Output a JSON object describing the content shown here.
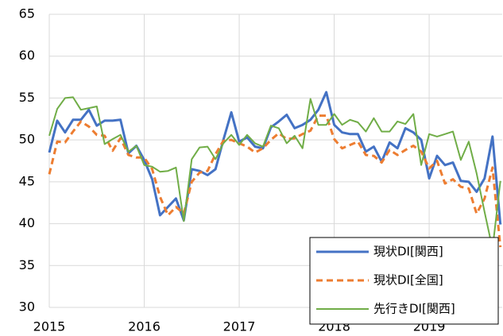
{
  "chart_data": {
    "type": "line",
    "categories": [
      "2015",
      null,
      null,
      null,
      null,
      null,
      null,
      null,
      null,
      null,
      null,
      null,
      "2016",
      null,
      null,
      null,
      null,
      null,
      null,
      null,
      null,
      null,
      null,
      null,
      "2017",
      null,
      null,
      null,
      null,
      null,
      null,
      null,
      null,
      null,
      null,
      null,
      "2018",
      null,
      null,
      null,
      null,
      null,
      null,
      null,
      null,
      null,
      null,
      null,
      "2019",
      null,
      null,
      null,
      null,
      null,
      null,
      null,
      null,
      null
    ],
    "series": [
      {
        "name": "現状DI[関西]",
        "color": "#4472c4",
        "dash": "solid",
        "values": [
          48.5,
          52.3,
          50.9,
          52.4,
          52.4,
          53.6,
          51.7,
          52.3,
          52.3,
          52.4,
          48.4,
          49.3,
          47.6,
          45.3,
          41.0,
          42.0,
          43.0,
          40.4,
          46.5,
          46.3,
          45.8,
          46.5,
          50.0,
          53.3,
          49.8,
          50.3,
          49.2,
          49.0,
          51.5,
          52.2,
          53.0,
          51.4,
          51.8,
          52.4,
          53.6,
          55.7,
          51.8,
          50.9,
          50.7,
          50.7,
          48.6,
          49.2,
          47.4,
          49.7,
          49.0,
          51.4,
          50.9,
          50.0,
          45.4,
          48.1,
          47.0,
          47.3,
          45.1,
          45.0,
          43.8,
          45.4,
          50.4,
          39.9
        ]
      },
      {
        "name": "現状DI[全国]",
        "color": "#ed7d31",
        "dash": "dashed",
        "values": [
          45.9,
          49.8,
          49.7,
          51.0,
          52.2,
          51.6,
          50.6,
          50.5,
          48.7,
          50.2,
          48.2,
          47.9,
          47.9,
          46.5,
          43.2,
          41.0,
          42.0,
          41.2,
          45.0,
          46.1,
          46.3,
          48.3,
          49.9,
          50.0,
          49.6,
          49.2,
          48.5,
          49.0,
          50.0,
          50.8,
          50.1,
          50.2,
          50.7,
          51.1,
          52.9,
          52.9,
          50.1,
          49.0,
          49.4,
          49.8,
          48.2,
          48.1,
          47.3,
          48.8,
          48.2,
          48.8,
          49.3,
          48.6,
          46.6,
          47.5,
          44.8,
          45.3,
          44.4,
          44.2,
          41.2,
          43.0,
          46.7,
          37.2
        ]
      },
      {
        "name": "先行きDI[関西]",
        "color": "#70ad47",
        "dash": "solid",
        "values": [
          50.5,
          53.7,
          55.0,
          55.1,
          53.6,
          53.8,
          54.0,
          49.5,
          50.1,
          50.6,
          48.6,
          49.3,
          47.0,
          46.8,
          46.2,
          46.3,
          46.7,
          40.3,
          47.7,
          49.1,
          49.2,
          47.7,
          49.6,
          50.6,
          49.4,
          50.6,
          49.6,
          49.2,
          51.7,
          51.4,
          49.6,
          50.5,
          49.0,
          54.9,
          51.8,
          51.8,
          53.1,
          51.8,
          52.4,
          52.1,
          51.0,
          52.6,
          51.0,
          51.0,
          52.2,
          51.9,
          53.1,
          47.0,
          50.7,
          50.4,
          50.7,
          51.0,
          47.6,
          49.8,
          46.0,
          41.4,
          37.0,
          45.1
        ]
      }
    ],
    "ylim": [
      30,
      65
    ],
    "yticks": [
      30,
      35,
      40,
      45,
      50,
      55,
      60,
      65
    ],
    "grid": true,
    "legend": "lower right"
  }
}
